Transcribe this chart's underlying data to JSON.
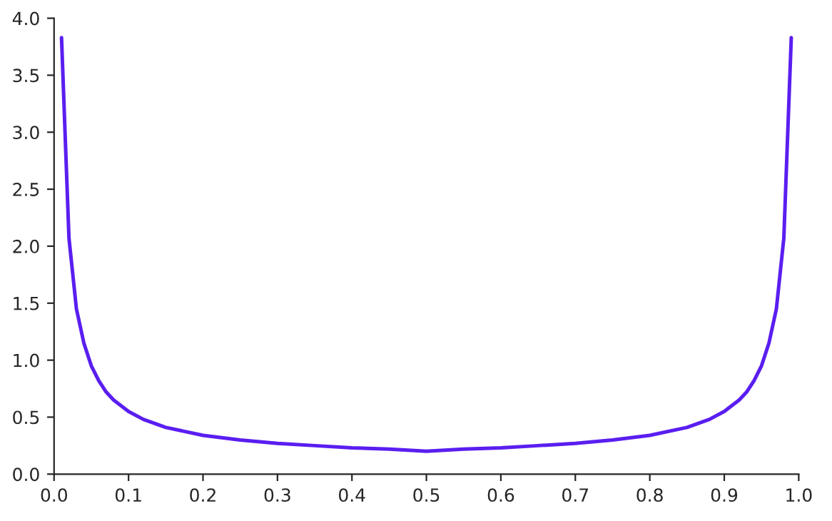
{
  "chart_data": {
    "type": "line",
    "xlim": [
      0,
      1
    ],
    "ylim": [
      0,
      4
    ],
    "xticks": [
      {
        "value": 0,
        "label": "0.0"
      },
      {
        "value": 0.1,
        "label": "0.1"
      },
      {
        "value": 0.2,
        "label": "0.2"
      },
      {
        "value": 0.3,
        "label": "0.3"
      },
      {
        "value": 0.4,
        "label": "0.4"
      },
      {
        "value": 0.5,
        "label": "0.5"
      },
      {
        "value": 0.6,
        "label": "0.6"
      },
      {
        "value": 0.7,
        "label": "0.7"
      },
      {
        "value": 0.8,
        "label": "0.8"
      },
      {
        "value": 0.9,
        "label": "0.9"
      },
      {
        "value": 1,
        "label": "1.0"
      }
    ],
    "yticks": [
      {
        "value": 0,
        "label": "0.0"
      },
      {
        "value": 0.5,
        "label": "0.5"
      },
      {
        "value": 1,
        "label": "1.0"
      },
      {
        "value": 1.5,
        "label": "1.5"
      },
      {
        "value": 2,
        "label": "2.0"
      },
      {
        "value": 2.5,
        "label": "2.5"
      },
      {
        "value": 3,
        "label": "3.0"
      },
      {
        "value": 3.5,
        "label": "3.5"
      },
      {
        "value": 4,
        "label": "4.0"
      }
    ],
    "grid": false,
    "legend": false,
    "marker": "none",
    "line_style": "solid",
    "series": [
      {
        "color": "#5a1ef0",
        "x": [
          0.01,
          0.02,
          0.03,
          0.04,
          0.05,
          0.06,
          0.07,
          0.08,
          0.1,
          0.12,
          0.15,
          0.2,
          0.25,
          0.3,
          0.35,
          0.4,
          0.45,
          0.5,
          0.55,
          0.6,
          0.65,
          0.7,
          0.75,
          0.8,
          0.85,
          0.88,
          0.9,
          0.92,
          0.93,
          0.94,
          0.95,
          0.96,
          0.97,
          0.98,
          0.99
        ],
        "values": [
          3.83,
          2.07,
          1.45,
          1.15,
          0.95,
          0.82,
          0.72,
          0.65,
          0.55,
          0.48,
          0.41,
          0.34,
          0.3,
          0.27,
          0.25,
          0.23,
          0.22,
          0.2,
          0.22,
          0.23,
          0.25,
          0.27,
          0.3,
          0.34,
          0.41,
          0.48,
          0.55,
          0.65,
          0.72,
          0.82,
          0.95,
          1.15,
          1.45,
          2.07,
          3.83
        ]
      }
    ]
  }
}
